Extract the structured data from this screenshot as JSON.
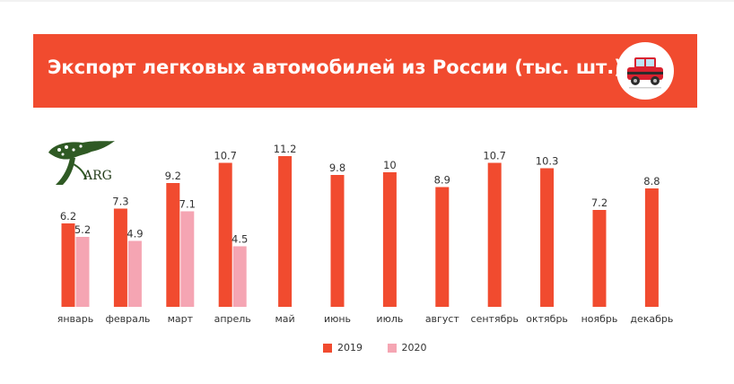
{
  "header": {
    "title": "Экспорт легковых автомобилей из России (тыс. шт.)",
    "icon": "car-icon"
  },
  "logo": {
    "text": "ARG",
    "icon": "tree-logo-icon"
  },
  "colors": {
    "header_bg": "#f14b2f",
    "series_2019": "#f14b2f",
    "series_2020": "#f5a5b3"
  },
  "chart_data": {
    "type": "bar",
    "title": "Экспорт легковых автомобилей из России (тыс. шт.)",
    "categories": [
      "январь",
      "февраль",
      "март",
      "апрель",
      "май",
      "июнь",
      "июль",
      "август",
      "сентябрь",
      "октябрь",
      "ноябрь",
      "декабрь"
    ],
    "series": [
      {
        "name": "2019",
        "color": "#f14b2f",
        "values": [
          6.2,
          7.3,
          9.2,
          10.7,
          11.2,
          9.8,
          10,
          8.9,
          10.7,
          10.3,
          7.2,
          8.8
        ]
      },
      {
        "name": "2020",
        "color": "#f5a5b3",
        "values": [
          5.2,
          4.9,
          7.1,
          4.5,
          null,
          null,
          null,
          null,
          null,
          null,
          null,
          null
        ]
      }
    ],
    "ylim": [
      0,
      11.2
    ],
    "legend": "bottom",
    "grid": false,
    "xlabel": "",
    "ylabel": ""
  }
}
